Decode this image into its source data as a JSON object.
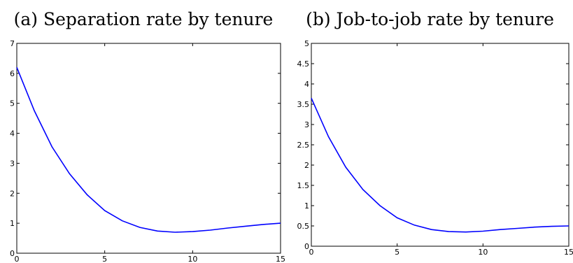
{
  "chart_data": [
    {
      "type": "line",
      "title": "(a) Separation rate by tenure",
      "xlabel": "",
      "ylabel": "",
      "xlim": [
        0,
        15
      ],
      "ylim": [
        0,
        7
      ],
      "xticks": [
        0,
        5,
        10,
        15
      ],
      "yticks": [
        0,
        1,
        2,
        3,
        4,
        5,
        6,
        7
      ],
      "grid": false,
      "series": [
        {
          "color": "#0000ff",
          "x": [
            0,
            1,
            2,
            3,
            4,
            5,
            6,
            7,
            8,
            9,
            10,
            11,
            12,
            13,
            14,
            15
          ],
          "y": [
            6.2,
            4.75,
            3.55,
            2.65,
            1.95,
            1.42,
            1.08,
            0.86,
            0.74,
            0.7,
            0.72,
            0.77,
            0.84,
            0.9,
            0.96,
            1.0
          ]
        }
      ]
    },
    {
      "type": "line",
      "title": "(b) Job-to-job rate by tenure",
      "xlabel": "",
      "ylabel": "",
      "xlim": [
        0,
        15
      ],
      "ylim": [
        0,
        5
      ],
      "xticks": [
        0,
        5,
        10,
        15
      ],
      "yticks": [
        0,
        0.5,
        1,
        1.5,
        2,
        2.5,
        3,
        3.5,
        4,
        4.5,
        5
      ],
      "grid": false,
      "series": [
        {
          "color": "#0000ff",
          "x": [
            0,
            1,
            2,
            3,
            4,
            5,
            6,
            7,
            8,
            9,
            10,
            11,
            12,
            13,
            14,
            15
          ],
          "y": [
            3.65,
            2.7,
            1.95,
            1.4,
            1.0,
            0.7,
            0.52,
            0.41,
            0.36,
            0.35,
            0.37,
            0.41,
            0.44,
            0.47,
            0.49,
            0.5
          ]
        }
      ]
    }
  ]
}
